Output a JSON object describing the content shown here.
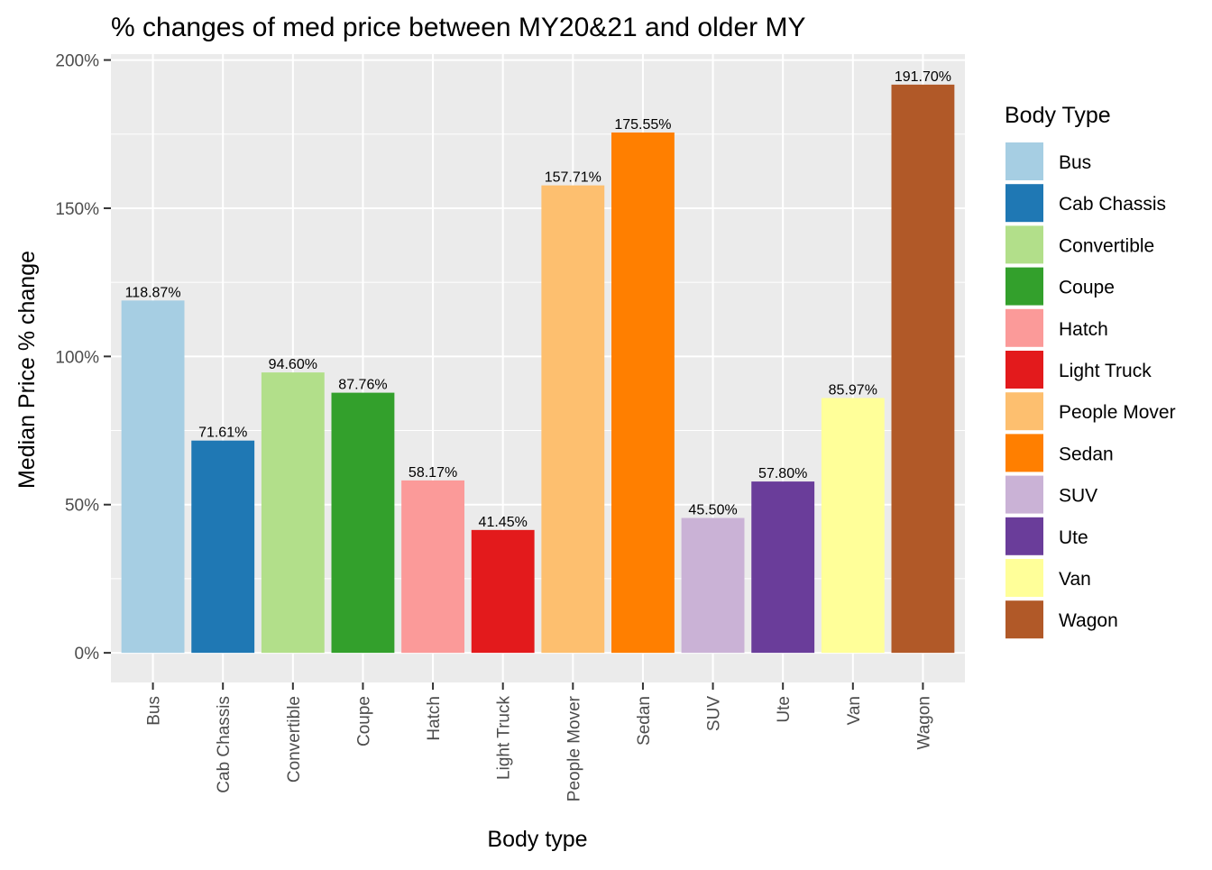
{
  "chart_data": {
    "type": "bar",
    "title": "% changes of med price  between MY20&21 and older MY",
    "xlabel": "Body type",
    "ylabel": "Median Price % change",
    "ylim": [
      -10,
      202
    ],
    "yticks": [
      0,
      50,
      100,
      150,
      200
    ],
    "ytick_labels": [
      "0%",
      "50%",
      "100%",
      "150%",
      "200%"
    ],
    "grid": true,
    "legend_title": "Body Type",
    "legend_position": "right",
    "categories": [
      "Bus",
      "Cab Chassis",
      "Convertible",
      "Coupe",
      "Hatch",
      "Light Truck",
      "People Mover",
      "Sedan",
      "SUV",
      "Ute",
      "Van",
      "Wagon"
    ],
    "values": [
      118.87,
      71.61,
      94.6,
      87.76,
      58.17,
      41.45,
      157.71,
      175.55,
      45.5,
      57.8,
      85.97,
      191.7
    ],
    "value_labels": [
      "118.87%",
      "71.61%",
      "94.60%",
      "87.76%",
      "58.17%",
      "41.45%",
      "157.71%",
      "175.55%",
      "45.50%",
      "57.80%",
      "85.97%",
      "191.70%"
    ],
    "colors": [
      "#A6CEE3",
      "#1F78B4",
      "#B2DF8A",
      "#33A02C",
      "#FB9A99",
      "#E31A1C",
      "#FDBF6F",
      "#FF7F00",
      "#CAB2D6",
      "#6A3D9A",
      "#FFFF99",
      "#B15928"
    ],
    "panel_background": "#EBEBEB",
    "grid_color": "#FFFFFF"
  }
}
